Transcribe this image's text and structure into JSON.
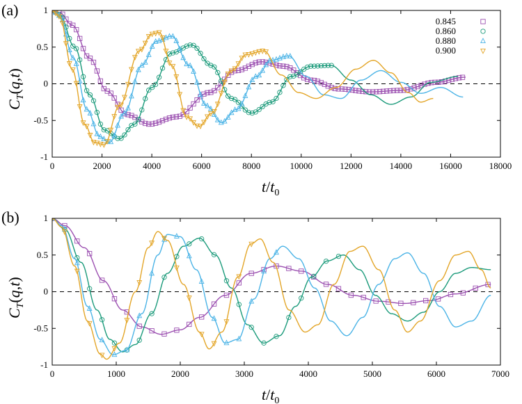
{
  "colors": {
    "0.845": "#9b4fb0",
    "0.860": "#1a9a7a",
    "0.880": "#4ab3e6",
    "0.900": "#e3a527",
    "axis": "#000000",
    "zero_line": "#000000"
  },
  "marker_shapes": {
    "0.845": "square",
    "0.860": "circle",
    "0.880": "triangle-up",
    "0.900": "triangle-down"
  },
  "chart_data": [
    {
      "panel_label": "(a)",
      "type": "line",
      "xlabel": "t/t0",
      "ylabel": "CT(q,t)",
      "xlim": [
        0,
        18000
      ],
      "ylim": [
        -1,
        1
      ],
      "xticks": [
        0,
        2000,
        4000,
        6000,
        8000,
        10000,
        12000,
        14000,
        16000,
        18000
      ],
      "yticks": [
        -1,
        -0.5,
        0,
        0.5,
        1
      ],
      "zero_line": "dashed",
      "legend_position": "top-right",
      "series": [
        {
          "name": "0.845",
          "marker": "square",
          "markers_until": 16600,
          "fit_until": 16600,
          "points": [
            [
              0,
              1
            ],
            [
              300,
              0.97
            ],
            [
              800,
              0.8
            ],
            [
              1500,
              0.35
            ],
            [
              2200,
              -0.1
            ],
            [
              3000,
              -0.42
            ],
            [
              3900,
              -0.55
            ],
            [
              5000,
              -0.45
            ],
            [
              6300,
              -0.12
            ],
            [
              7400,
              0.18
            ],
            [
              8400,
              0.3
            ],
            [
              9300,
              0.24
            ],
            [
              10400,
              0.05
            ],
            [
              11500,
              -0.07
            ],
            [
              12800,
              -0.11
            ],
            [
              14000,
              -0.09
            ],
            [
              15400,
              0.02
            ],
            [
              16600,
              0.09
            ]
          ]
        },
        {
          "name": "0.860",
          "marker": "circle",
          "markers_until": 11300,
          "fit_until": 16300,
          "points": [
            [
              0,
              1
            ],
            [
              300,
              0.94
            ],
            [
              900,
              0.5
            ],
            [
              1500,
              -0.15
            ],
            [
              2100,
              -0.63
            ],
            [
              2700,
              -0.75
            ],
            [
              3300,
              -0.55
            ],
            [
              4000,
              -0.05
            ],
            [
              4800,
              0.42
            ],
            [
              5600,
              0.53
            ],
            [
              6400,
              0.25
            ],
            [
              7200,
              -0.2
            ],
            [
              8000,
              -0.4
            ],
            [
              8800,
              -0.25
            ],
            [
              9600,
              0.1
            ],
            [
              10400,
              0.24
            ],
            [
              11200,
              0.25
            ],
            [
              12000,
              0.05
            ],
            [
              12800,
              -0.15
            ],
            [
              13600,
              -0.28
            ],
            [
              14400,
              -0.18
            ],
            [
              15200,
              0.02
            ],
            [
              16300,
              0.1
            ]
          ]
        },
        {
          "name": "0.880",
          "marker": "triangle-up",
          "markers_until": 9600,
          "fit_until": 16500,
          "points": [
            [
              0,
              1
            ],
            [
              300,
              0.93
            ],
            [
              850,
              0.35
            ],
            [
              1400,
              -0.35
            ],
            [
              1900,
              -0.72
            ],
            [
              2300,
              -0.8
            ],
            [
              2900,
              -0.4
            ],
            [
              3600,
              0.25
            ],
            [
              4200,
              0.58
            ],
            [
              4800,
              0.65
            ],
            [
              5500,
              0.25
            ],
            [
              6200,
              -0.3
            ],
            [
              6800,
              -0.53
            ],
            [
              7400,
              -0.35
            ],
            [
              8200,
              0.1
            ],
            [
              8800,
              0.32
            ],
            [
              9500,
              0.38
            ],
            [
              10200,
              0.1
            ],
            [
              10900,
              -0.15
            ],
            [
              11600,
              -0.2
            ],
            [
              12400,
              0.05
            ],
            [
              13200,
              0.18
            ],
            [
              14000,
              0.02
            ],
            [
              14800,
              -0.13
            ],
            [
              15600,
              -0.05
            ],
            [
              16500,
              -0.18
            ]
          ]
        },
        {
          "name": "0.900",
          "marker": "triangle-down",
          "markers_until": 8600,
          "fit_until": 15300,
          "points": [
            [
              0,
              1
            ],
            [
              300,
              0.92
            ],
            [
              800,
              0.2
            ],
            [
              1300,
              -0.55
            ],
            [
              1700,
              -0.8
            ],
            [
              2100,
              -0.83
            ],
            [
              2700,
              -0.3
            ],
            [
              3500,
              0.45
            ],
            [
              4000,
              0.68
            ],
            [
              4300,
              0.7
            ],
            [
              4800,
              0.25
            ],
            [
              5400,
              -0.45
            ],
            [
              5900,
              -0.58
            ],
            [
              6400,
              -0.4
            ],
            [
              7200,
              0.18
            ],
            [
              7800,
              0.4
            ],
            [
              8500,
              0.45
            ],
            [
              9200,
              0.12
            ],
            [
              9900,
              -0.12
            ],
            [
              10600,
              -0.2
            ],
            [
              11400,
              -0.05
            ],
            [
              12200,
              0.2
            ],
            [
              12900,
              0.32
            ],
            [
              13600,
              0.15
            ],
            [
              14300,
              -0.12
            ],
            [
              14800,
              -0.25
            ],
            [
              15300,
              -0.2
            ]
          ]
        }
      ]
    },
    {
      "panel_label": "(b)",
      "type": "line",
      "xlabel": "t/t0",
      "ylabel": "CT(q,t)",
      "xlim": [
        0,
        7000
      ],
      "ylim": [
        -1,
        1
      ],
      "xticks": [
        0,
        1000,
        2000,
        3000,
        4000,
        5000,
        6000,
        7000
      ],
      "yticks": [
        -1,
        -0.5,
        0,
        0.5,
        1
      ],
      "zero_line": "dashed",
      "legend_position": "none",
      "series": [
        {
          "name": "0.845",
          "marker": "square",
          "markers_until": 6850,
          "fit_until": 6850,
          "points": [
            [
              0,
              1
            ],
            [
              200,
              0.9
            ],
            [
              500,
              0.6
            ],
            [
              800,
              0.15
            ],
            [
              1100,
              -0.25
            ],
            [
              1400,
              -0.48
            ],
            [
              1700,
              -0.58
            ],
            [
              2000,
              -0.52
            ],
            [
              2300,
              -0.35
            ],
            [
              2700,
              -0.05
            ],
            [
              3100,
              0.25
            ],
            [
              3500,
              0.35
            ],
            [
              3900,
              0.28
            ],
            [
              4300,
              0.1
            ],
            [
              4700,
              -0.05
            ],
            [
              5100,
              -0.13
            ],
            [
              5500,
              -0.16
            ],
            [
              5900,
              -0.12
            ],
            [
              6300,
              -0.03
            ],
            [
              6850,
              0.1
            ]
          ]
        },
        {
          "name": "0.860",
          "marker": "circle",
          "markers_until": 4480,
          "fit_until": 6850,
          "points": [
            [
              0,
              1
            ],
            [
              200,
              0.85
            ],
            [
              450,
              0.4
            ],
            [
              700,
              -0.25
            ],
            [
              900,
              -0.65
            ],
            [
              1100,
              -0.82
            ],
            [
              1300,
              -0.72
            ],
            [
              1550,
              -0.3
            ],
            [
              1800,
              0.25
            ],
            [
              2050,
              0.62
            ],
            [
              2300,
              0.73
            ],
            [
              2550,
              0.5
            ],
            [
              2800,
              0.05
            ],
            [
              3050,
              -0.45
            ],
            [
              3300,
              -0.7
            ],
            [
              3550,
              -0.6
            ],
            [
              3800,
              -0.2
            ],
            [
              4050,
              0.2
            ],
            [
              4300,
              0.42
            ],
            [
              4550,
              0.5
            ],
            [
              4800,
              0.3
            ],
            [
              5050,
              -0.05
            ],
            [
              5300,
              -0.3
            ],
            [
              5550,
              -0.4
            ],
            [
              5800,
              -0.28
            ],
            [
              6050,
              0.0
            ],
            [
              6300,
              0.25
            ],
            [
              6550,
              0.33
            ],
            [
              6850,
              0.3
            ]
          ]
        },
        {
          "name": "0.880",
          "marker": "triangle-up",
          "markers_until": 3620,
          "fit_until": 6850,
          "points": [
            [
              0,
              1
            ],
            [
              150,
              0.9
            ],
            [
              350,
              0.45
            ],
            [
              550,
              -0.2
            ],
            [
              750,
              -0.65
            ],
            [
              950,
              -0.86
            ],
            [
              1150,
              -0.8
            ],
            [
              1400,
              -0.3
            ],
            [
              1650,
              0.5
            ],
            [
              1800,
              0.78
            ],
            [
              2000,
              0.75
            ],
            [
              2250,
              0.3
            ],
            [
              2500,
              -0.35
            ],
            [
              2700,
              -0.7
            ],
            [
              2900,
              -0.65
            ],
            [
              3150,
              -0.1
            ],
            [
              3400,
              0.45
            ],
            [
              3600,
              0.62
            ],
            [
              3850,
              0.45
            ],
            [
              4100,
              0.05
            ],
            [
              4350,
              -0.4
            ],
            [
              4600,
              -0.6
            ],
            [
              4850,
              -0.35
            ],
            [
              5100,
              0.1
            ],
            [
              5350,
              0.45
            ],
            [
              5550,
              0.53
            ],
            [
              5800,
              0.25
            ],
            [
              6050,
              -0.2
            ],
            [
              6300,
              -0.48
            ],
            [
              6550,
              -0.4
            ],
            [
              6850,
              -0.05
            ]
          ]
        },
        {
          "name": "0.900",
          "marker": "triangle-down",
          "markers_until": 3250,
          "fit_until": 6850,
          "points": [
            [
              0,
              1
            ],
            [
              150,
              0.88
            ],
            [
              350,
              0.35
            ],
            [
              550,
              -0.4
            ],
            [
              750,
              -0.85
            ],
            [
              850,
              -0.92
            ],
            [
              1050,
              -0.7
            ],
            [
              1300,
              0.0
            ],
            [
              1500,
              0.6
            ],
            [
              1650,
              0.82
            ],
            [
              1800,
              0.7
            ],
            [
              2050,
              0.1
            ],
            [
              2300,
              -0.55
            ],
            [
              2450,
              -0.78
            ],
            [
              2650,
              -0.55
            ],
            [
              2900,
              0.2
            ],
            [
              3100,
              0.65
            ],
            [
              3250,
              0.72
            ],
            [
              3450,
              0.4
            ],
            [
              3700,
              -0.25
            ],
            [
              3950,
              -0.55
            ],
            [
              4150,
              -0.45
            ],
            [
              4400,
              0.1
            ],
            [
              4650,
              0.55
            ],
            [
              4850,
              0.62
            ],
            [
              5100,
              0.3
            ],
            [
              5350,
              -0.25
            ],
            [
              5550,
              -0.55
            ],
            [
              5750,
              -0.4
            ],
            [
              6050,
              0.15
            ],
            [
              6300,
              0.5
            ],
            [
              6500,
              0.55
            ],
            [
              6700,
              0.3
            ],
            [
              6850,
              0.05
            ]
          ]
        }
      ]
    }
  ]
}
